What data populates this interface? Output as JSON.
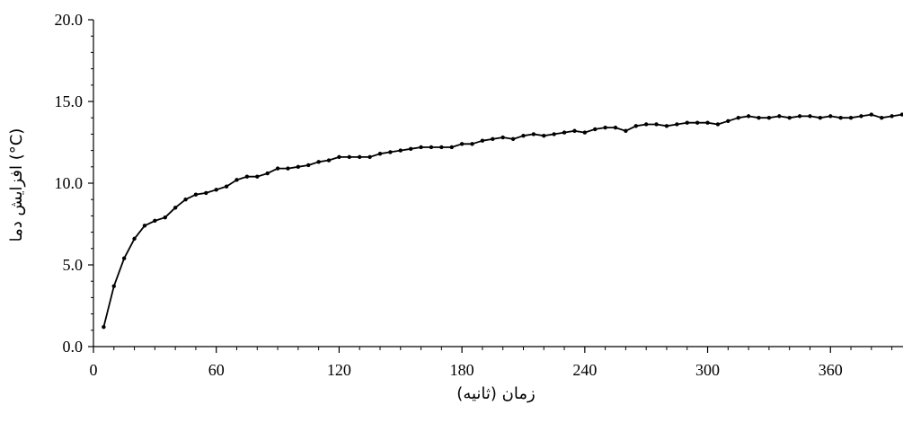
{
  "chart_data": {
    "type": "line",
    "title": "",
    "xlabel": "زمان (ثانیه)",
    "ylabel": "افزایش دما (°C)",
    "xlim": [
      0,
      395
    ],
    "ylim": [
      0,
      20
    ],
    "xticks": [
      0,
      60,
      120,
      180,
      240,
      300,
      360
    ],
    "yticks": [
      0,
      5,
      10,
      15,
      20
    ],
    "xtick_labels": [
      "0",
      "60",
      "120",
      "180",
      "240",
      "300",
      "360"
    ],
    "ytick_labels": [
      "0.0",
      "5.0",
      "10.0",
      "15.0",
      "20.0"
    ],
    "grid": false,
    "legend": "none",
    "series": [
      {
        "color": "#000000",
        "marker": "dot",
        "x": [
          5,
          10,
          15,
          20,
          25,
          30,
          35,
          40,
          45,
          50,
          55,
          60,
          65,
          70,
          75,
          80,
          85,
          90,
          95,
          100,
          105,
          110,
          115,
          120,
          125,
          130,
          135,
          140,
          145,
          150,
          155,
          160,
          165,
          170,
          175,
          180,
          185,
          190,
          195,
          200,
          205,
          210,
          215,
          220,
          225,
          230,
          235,
          240,
          245,
          250,
          255,
          260,
          265,
          270,
          275,
          280,
          285,
          290,
          295,
          300,
          305,
          310,
          315,
          320,
          325,
          330,
          335,
          340,
          345,
          350,
          355,
          360,
          365,
          370,
          375,
          380,
          385,
          390,
          395
        ],
        "y": [
          1.2,
          3.7,
          5.4,
          6.6,
          7.4,
          7.7,
          7.9,
          8.5,
          9.0,
          9.3,
          9.4,
          9.6,
          9.8,
          10.2,
          10.4,
          10.4,
          10.6,
          10.9,
          10.9,
          11.0,
          11.1,
          11.3,
          11.4,
          11.6,
          11.6,
          11.6,
          11.6,
          11.8,
          11.9,
          12.0,
          12.1,
          12.2,
          12.2,
          12.2,
          12.2,
          12.4,
          12.4,
          12.6,
          12.7,
          12.8,
          12.7,
          12.9,
          13.0,
          12.9,
          13.0,
          13.1,
          13.2,
          13.1,
          13.3,
          13.4,
          13.4,
          13.2,
          13.5,
          13.6,
          13.6,
          13.5,
          13.6,
          13.7,
          13.7,
          13.7,
          13.6,
          13.8,
          14.0,
          14.1,
          14.0,
          14.0,
          14.1,
          14.0,
          14.1,
          14.1,
          14.0,
          14.1,
          14.0,
          14.0,
          14.1,
          14.2,
          14.0,
          14.1,
          14.2
        ]
      }
    ]
  }
}
